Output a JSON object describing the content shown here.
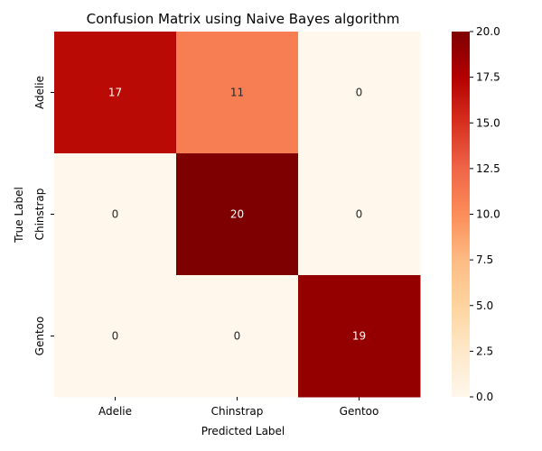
{
  "chart_data": {
    "type": "heatmap",
    "title": "Confusion Matrix using Naive Bayes algorithm",
    "xlabel": "Predicted Label",
    "ylabel": "True Label",
    "x_categories": [
      "Adelie",
      "Chinstrap",
      "Gentoo"
    ],
    "y_categories": [
      "Adelie",
      "Chinstrap",
      "Gentoo"
    ],
    "values": [
      [
        17,
        11,
        0
      ],
      [
        0,
        20,
        0
      ],
      [
        0,
        0,
        19
      ]
    ],
    "colormap": "OrRd",
    "colorbar": {
      "range": [
        0,
        20
      ],
      "ticks": [
        "0.0",
        "2.5",
        "5.0",
        "7.5",
        "10.0",
        "12.5",
        "15.0",
        "17.5",
        "20.0"
      ]
    },
    "colors": {
      "low": "#fff7ec",
      "high": "#7f0000",
      "light_text": "#ffffff",
      "dark_text": "#262626"
    }
  }
}
